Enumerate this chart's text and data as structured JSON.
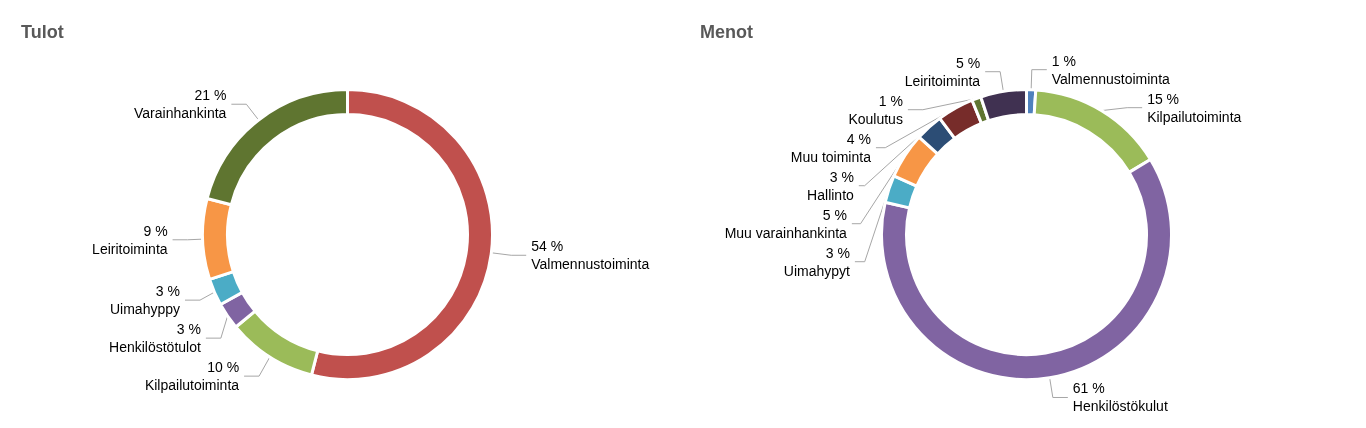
{
  "chart_data": [
    {
      "type": "donut",
      "title": "Tulot",
      "categories": [
        "Valmennustoiminta",
        "Kilpailutoiminta",
        "Henkilöstötulot",
        "Uimahyppy",
        "Leiritoiminta",
        "Varainhankinta"
      ],
      "values": [
        54,
        10,
        3,
        3,
        9,
        21
      ],
      "value_labels": [
        "54 %",
        "10 %",
        "3 %",
        "3 %",
        "9 %",
        "21 %"
      ],
      "colors": [
        "#c0504d",
        "#9bbb59",
        "#8064a2",
        "#4bacc6",
        "#f79646",
        "#5f7530"
      ]
    },
    {
      "type": "donut",
      "title": "Menot",
      "categories": [
        "Valmennustoiminta",
        "Kilpailutoiminta",
        "Henkilöstökulut",
        "Uimahypyt",
        "Muu varainhankinta",
        "Hallinto",
        "Muu toiminta",
        "Koulutus",
        "Leiritoiminta"
      ],
      "values": [
        1,
        15,
        61,
        3,
        5,
        3,
        4,
        1,
        5
      ],
      "value_labels": [
        "1 %",
        "15 %",
        "61 %",
        "3 %",
        "5 %",
        "3 %",
        "4 %",
        "1 %",
        "5 %"
      ],
      "colors": [
        "#4f81bd",
        "#9bbb59",
        "#8064a2",
        "#4bacc6",
        "#f79646",
        "#2c4d75",
        "#772c2a",
        "#5f7530",
        "#403151"
      ]
    }
  ]
}
